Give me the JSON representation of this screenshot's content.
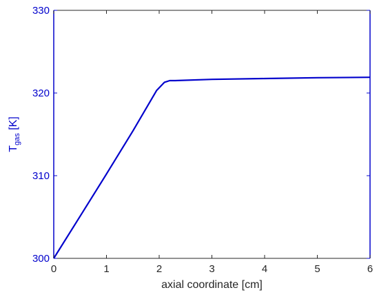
{
  "chart_data": {
    "type": "line",
    "xlabel": "axial coordinate [cm]",
    "ylabel": {
      "main": "T",
      "sub": "gas",
      "unit": "[K]"
    },
    "xlim": [
      0,
      6
    ],
    "ylim": [
      300,
      330
    ],
    "x_ticks": [
      0,
      1,
      2,
      3,
      4,
      5,
      6
    ],
    "y_ticks": [
      300,
      310,
      320,
      330
    ],
    "grid": false,
    "colors": {
      "line": "#0000cc",
      "axis_left": "#0000cc",
      "axis_right": "#0000cc",
      "axis_bottom": "#262626",
      "axis_top": "#262626"
    },
    "series": [
      {
        "x": [
          0,
          0.5,
          1.0,
          1.5,
          1.95,
          2.1,
          2.2,
          2.3,
          3.0,
          4.0,
          5.0,
          6.0
        ],
        "y": [
          300,
          305.1,
          310.2,
          315.4,
          320.3,
          321.3,
          321.5,
          321.5,
          321.65,
          321.75,
          321.85,
          321.9
        ]
      }
    ]
  }
}
